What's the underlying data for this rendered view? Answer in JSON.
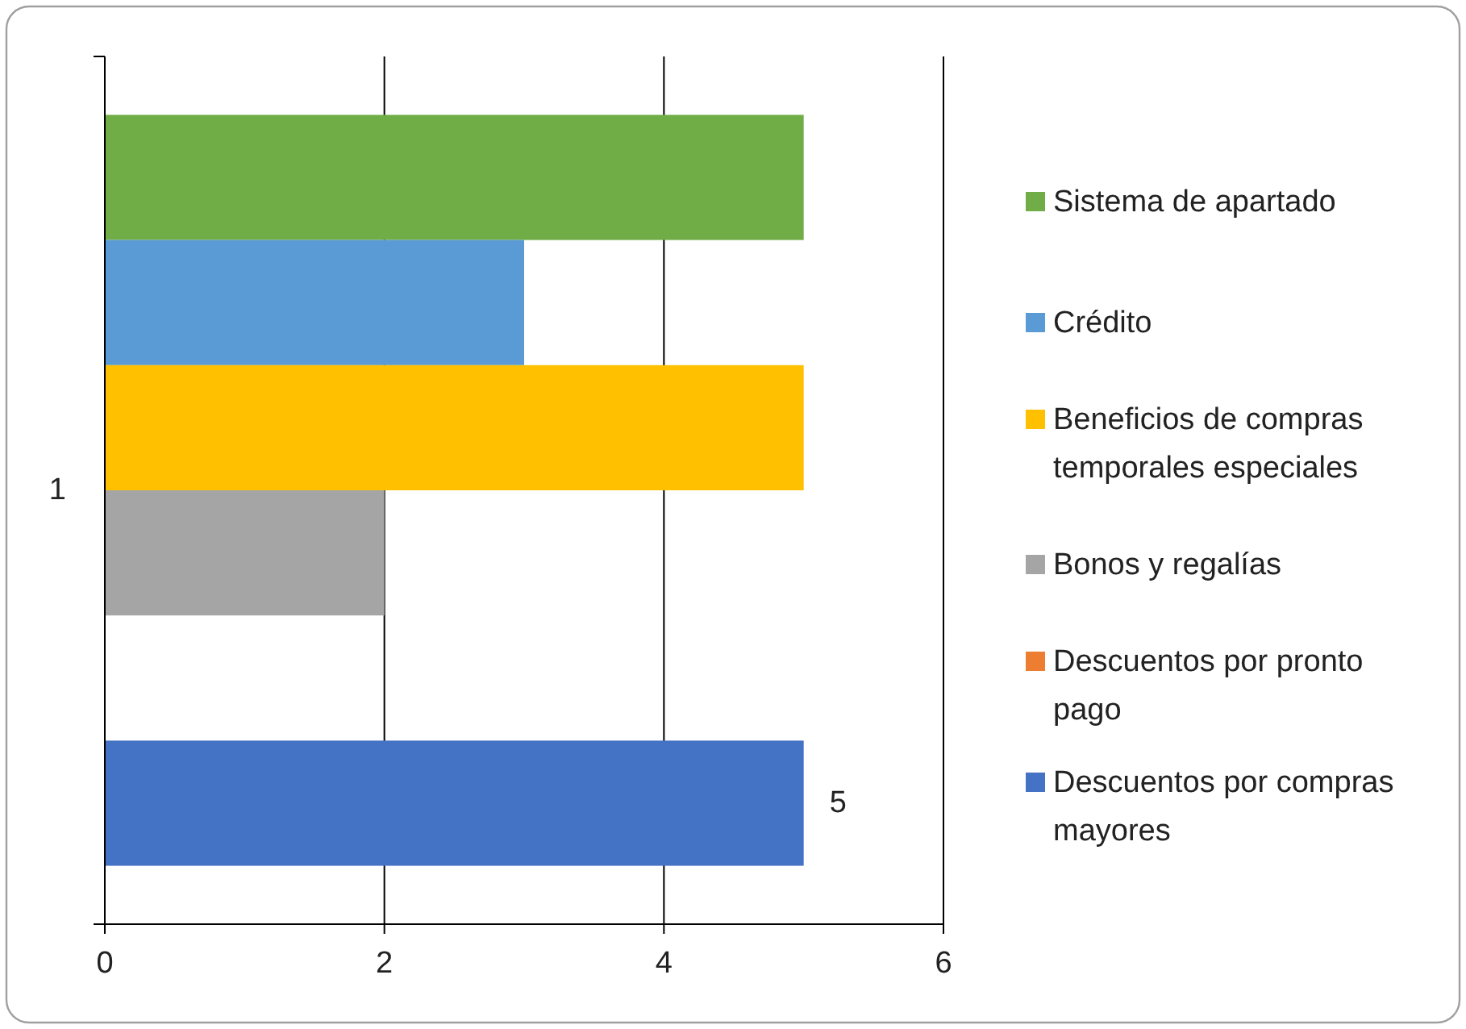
{
  "chart_data": {
    "type": "bar",
    "orientation": "horizontal",
    "categories": [
      "1"
    ],
    "series": [
      {
        "name": "Sistema de apartado",
        "color": "#70ad47",
        "values": [
          5
        ]
      },
      {
        "name": "Crédito",
        "color": "#5b9bd5",
        "values": [
          3
        ]
      },
      {
        "name": "Beneficios de compras temporales especiales",
        "color": "#ffc000",
        "values": [
          5
        ]
      },
      {
        "name": "Bonos y regalías",
        "color": "#a5a5a5",
        "values": [
          2
        ]
      },
      {
        "name": "Descuentos por pronto pago",
        "color": "#ed7d31",
        "values": [
          0
        ]
      },
      {
        "name": "Descuentos por compras mayores",
        "color": "#4472c4",
        "values": [
          5
        ],
        "value_labels": [
          "5"
        ]
      }
    ],
    "xlim": [
      0,
      6
    ],
    "xticks": [
      0,
      2,
      4,
      6
    ],
    "grid": "x",
    "legend": "right"
  }
}
